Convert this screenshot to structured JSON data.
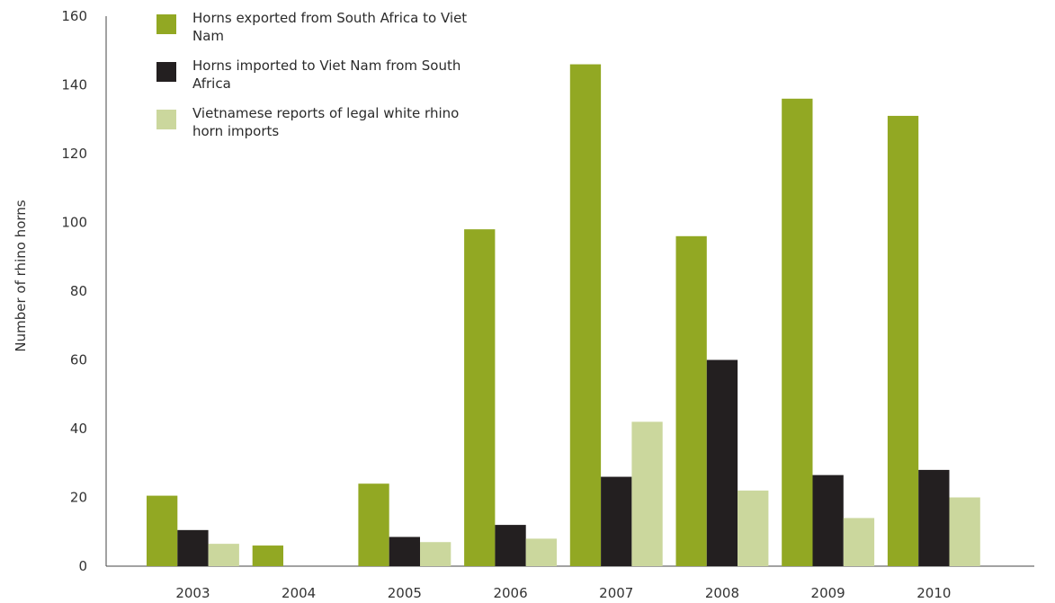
{
  "chart_data": {
    "type": "bar",
    "title": "",
    "xlabel": "",
    "ylabel": "Number of rhino horns",
    "categories": [
      "2003",
      "2004",
      "2005",
      "2006",
      "2007",
      "2008",
      "2009",
      "2010"
    ],
    "ylim": [
      0,
      160
    ],
    "yticks": [
      0,
      20,
      40,
      60,
      80,
      100,
      120,
      140,
      160
    ],
    "grid": false,
    "legend_position": "top-left",
    "series": [
      {
        "name": "Horns exported from South Africa to Viet Nam",
        "color": "#92a823",
        "values": [
          20.5,
          6,
          24,
          98,
          146,
          96,
          136,
          131
        ]
      },
      {
        "name": "Horns imported to Viet Nam from South Africa",
        "color": "#231f20",
        "values": [
          10.5,
          0,
          8.5,
          12,
          26,
          60,
          26.5,
          28
        ]
      },
      {
        "name": "Vietnamese reports of legal white rhino horn imports",
        "color": "#cbd79d",
        "values": [
          6.5,
          0,
          7,
          8,
          42,
          22,
          14,
          20
        ]
      }
    ]
  }
}
